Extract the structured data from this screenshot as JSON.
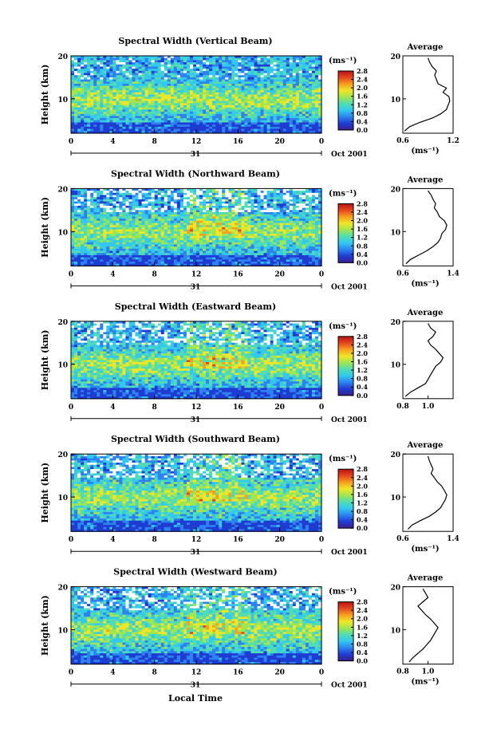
{
  "chart_data": {
    "type": "heatmap",
    "figure": {
      "xlabel": "Local Time",
      "colorbar_unit": "(ms⁻¹)",
      "colorbar_ticks": [
        "0.0",
        "0.4",
        "0.8",
        "1.2",
        "1.6",
        "2.0",
        "2.4",
        "2.8"
      ],
      "colorbar_range": [
        0,
        2.8
      ],
      "colorscale": [
        "#3b1e8c",
        "#1e3cd2",
        "#2d82f0",
        "#32c8f0",
        "#50dcb4",
        "#a0e650",
        "#f0e628",
        "#f5a01e",
        "#e6461e",
        "#b41414"
      ],
      "x_ticks": [
        "0",
        "4",
        "8",
        "12",
        "16",
        "20",
        "0"
      ],
      "x_range": [
        0,
        24
      ],
      "y_ticks": [
        "10",
        "20"
      ],
      "y_range": [
        2,
        20
      ],
      "day_label": "31",
      "date_label": "Oct 2001",
      "avg_title": "Average"
    },
    "panels": [
      {
        "title": "Spectral Width (Vertical Beam)",
        "ylabel": "Height (km)",
        "avg_xticks": [
          "0.6",
          "1.2"
        ],
        "avg_xlim": [
          0.6,
          1.2
        ],
        "avg_xlabel": "(ms⁻¹)",
        "profile": {
          "height_km": [
            2.5,
            3.5,
            4.5,
            5.5,
            6.5,
            7.5,
            8.5,
            9.5,
            10.5,
            11.5,
            12.5,
            13.5,
            14.5,
            15.5,
            16.5,
            17.5,
            18.5,
            19.5
          ],
          "width_ms": [
            0.62,
            0.68,
            0.8,
            0.95,
            1.05,
            1.12,
            1.14,
            1.16,
            1.15,
            1.08,
            1.12,
            1.02,
            1.0,
            0.98,
            1.0,
            0.95,
            0.92,
            0.9
          ]
        }
      },
      {
        "title": "Spectral Width (Northward Beam)",
        "ylabel": "Height (km)",
        "avg_xticks": [
          "0.6",
          "1.4"
        ],
        "avg_xlim": [
          0.6,
          1.4
        ],
        "avg_xlabel": "(ms⁻¹)",
        "profile": {
          "height_km": [
            2.5,
            3.5,
            4.5,
            5.5,
            6.5,
            7.5,
            8.5,
            9.5,
            10.5,
            11.5,
            12.5,
            13.5,
            14.5,
            15.5,
            16.5,
            17.5,
            18.5,
            19.5
          ],
          "width_ms": [
            0.65,
            0.72,
            0.85,
            0.98,
            1.08,
            1.16,
            1.2,
            1.22,
            1.28,
            1.3,
            1.26,
            1.18,
            1.15,
            1.1,
            1.12,
            1.08,
            1.05,
            1.0
          ]
        }
      },
      {
        "title": "Spectral Width (Eastward Beam)",
        "ylabel": "Height (km)",
        "avg_xticks": [
          "0.8",
          "1.0"
        ],
        "avg_xlim": [
          0.8,
          1.2
        ],
        "avg_xlabel": "",
        "profile": {
          "height_km": [
            2.5,
            3.5,
            4.5,
            5.5,
            6.5,
            7.5,
            8.5,
            9.5,
            10.5,
            11.5,
            12.5,
            13.5,
            14.5,
            15.5,
            16.5,
            17.5,
            18.5,
            19.5
          ],
          "width_ms": [
            0.82,
            0.86,
            0.92,
            0.98,
            1.0,
            1.02,
            1.04,
            1.06,
            1.1,
            1.12,
            1.09,
            1.06,
            1.02,
            1.0,
            1.04,
            1.06,
            1.02,
            1.0
          ]
        }
      },
      {
        "title": "Spectral Width (Southward Beam)",
        "ylabel": "Height (km)",
        "avg_xticks": [
          "0.6",
          "1.4"
        ],
        "avg_xlim": [
          0.6,
          1.4
        ],
        "avg_xlabel": "(ms⁻¹)",
        "profile": {
          "height_km": [
            2.5,
            3.5,
            4.5,
            5.5,
            6.5,
            7.5,
            8.5,
            9.5,
            10.5,
            11.5,
            12.5,
            13.5,
            14.5,
            15.5,
            16.5,
            17.5,
            18.5,
            19.5
          ],
          "width_ms": [
            0.68,
            0.75,
            0.88,
            1.02,
            1.12,
            1.2,
            1.24,
            1.28,
            1.3,
            1.26,
            1.22,
            1.15,
            1.1,
            1.05,
            1.08,
            1.05,
            1.02,
            1.0
          ]
        }
      },
      {
        "title": "Spectral Width (Westward Beam)",
        "ylabel": "Height (km)",
        "avg_xticks": [
          "0.8",
          "1.0"
        ],
        "avg_xlim": [
          0.8,
          1.2
        ],
        "avg_xlabel": "(ms⁻¹)",
        "profile": {
          "height_km": [
            2.5,
            3.5,
            4.5,
            5.5,
            6.5,
            7.5,
            8.5,
            9.5,
            10.5,
            11.5,
            12.5,
            13.5,
            14.5,
            15.5,
            16.5,
            17.5,
            18.5,
            19.5
          ],
          "width_ms": [
            0.85,
            0.88,
            0.92,
            0.96,
            0.99,
            1.02,
            1.04,
            1.06,
            1.08,
            1.05,
            1.02,
            0.98,
            0.95,
            0.92,
            0.96,
            1.0,
            0.98,
            0.96
          ]
        }
      }
    ]
  }
}
